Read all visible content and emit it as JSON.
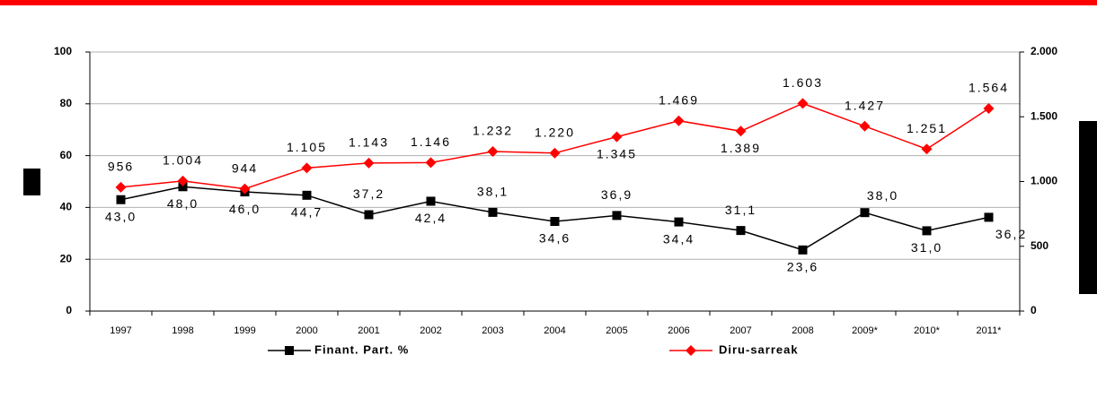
{
  "chart_data": {
    "type": "line",
    "categories": [
      "1997",
      "1998",
      "1999",
      "2000",
      "2001",
      "2002",
      "2003",
      "2004",
      "2005",
      "2006",
      "2007",
      "2008",
      "2009*",
      "2010*",
      "2011*"
    ],
    "series": [
      {
        "name": "Finant. Part. %",
        "color": "#000000",
        "marker": "square",
        "values": [
          43.0,
          48.0,
          46.0,
          44.7,
          37.2,
          42.4,
          38.1,
          34.6,
          36.9,
          34.4,
          31.1,
          23.6,
          38.0,
          31.0,
          36.2
        ],
        "value_labels": [
          "43,0",
          "48,0",
          "46,0",
          "44,7",
          "37,2",
          "42,4",
          "38,1",
          "34,6",
          "36,9",
          "34,4",
          "31,1",
          "23,6",
          "38,0",
          "31,0",
          "36,2"
        ]
      },
      {
        "name": "Diru-sarreak",
        "color": "#ff0000",
        "marker": "diamond",
        "axis": "y2",
        "values": [
          956,
          1004,
          944,
          1105,
          1143,
          1146,
          1232,
          1220,
          1345,
          1469,
          1389,
          1603,
          1427,
          1251,
          1564
        ],
        "value_labels": [
          "956",
          "1.004",
          "944",
          "1.105",
          "1.143",
          "1.146",
          "1.232",
          "1.220",
          "1.345",
          "1.469",
          "1.389",
          "1.603",
          "1.427",
          "1.251",
          "1.564"
        ]
      }
    ],
    "ylim": [
      0,
      100
    ],
    "yticks": [
      0,
      20,
      40,
      60,
      80,
      100
    ],
    "y2lim": [
      0,
      2000
    ],
    "y2ticks": [
      0,
      500,
      {
        "value": 1000,
        "label": "1.000"
      },
      {
        "value": 1500,
        "label": "1.500"
      },
      {
        "value": 2000,
        "label": "2.000"
      }
    ],
    "grid": true,
    "legend": "bottom"
  }
}
